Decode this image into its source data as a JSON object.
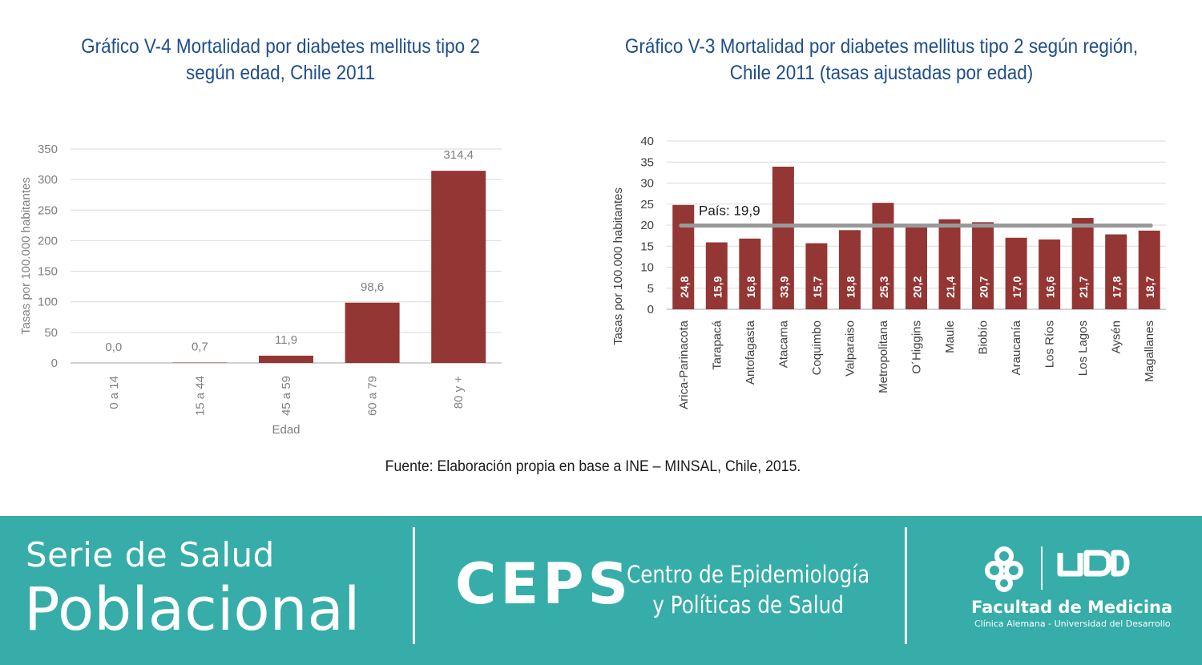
{
  "charts": {
    "left": {
      "title_line1": "Gráfico V-4 Mortalidad por diabetes mellitus tipo 2",
      "title_line2": "según edad, Chile 2011"
    },
    "right": {
      "title_line1": "Gráfico V-3 Mortalidad por diabetes mellitus tipo 2 según región,",
      "title_line2": "Chile 2011 (tasas ajustadas por edad)"
    }
  },
  "chart_data": [
    {
      "type": "bar",
      "title": "Gráfico V-4 Mortalidad por diabetes mellitus tipo 2 según edad, Chile 2011",
      "categories": [
        "0 a 14",
        "15 a 44",
        "45 a 59",
        "60 a 79",
        "80 y +"
      ],
      "values": [
        0.0,
        0.7,
        11.9,
        98.6,
        314.4
      ],
      "value_labels": [
        "0,0",
        "0,7",
        "11,9",
        "98,6",
        "314,4"
      ],
      "xlabel": "Edad",
      "ylabel": "Tasas por 100.000 habitantes",
      "ylim": [
        0,
        350
      ],
      "yticks": [
        0,
        50,
        100,
        150,
        200,
        250,
        300,
        350
      ],
      "grid": true,
      "bar_color": "#943634"
    },
    {
      "type": "bar",
      "title": "Gráfico V-3 Mortalidad por diabetes mellitus tipo 2 según región, Chile 2011 (tasas ajustadas por edad)",
      "categories": [
        "Arica-Parinacota",
        "Tarapacá",
        "Antofagasta",
        "Atacama",
        "Coquimbo",
        "Valparaiso",
        "Metropolitana",
        "O´Higgins",
        "Maule",
        "Biobío",
        "Araucanía",
        "Los Ríos",
        "Los Lagos",
        "Aysén",
        "Magallanes"
      ],
      "values": [
        24.8,
        15.9,
        16.8,
        33.9,
        15.7,
        18.8,
        25.3,
        20.2,
        21.4,
        20.7,
        17.0,
        16.6,
        21.7,
        17.8,
        18.7
      ],
      "value_labels": [
        "24,8",
        "15,9",
        "16,8",
        "33,9",
        "15,7",
        "18,8",
        "25,3",
        "20,2",
        "21,4",
        "20,7",
        "17,0",
        "16,6",
        "21,7",
        "17,8",
        "18,7"
      ],
      "xlabel": "",
      "ylabel": "Tasas por 100.000 habitantes",
      "ylim": [
        0,
        40
      ],
      "yticks": [
        0,
        5,
        10,
        15,
        20,
        25,
        30,
        35,
        40
      ],
      "grid": true,
      "bar_color": "#943634",
      "reference_line": {
        "value": 19.9,
        "label": "País: 19,9",
        "color": "#999999"
      }
    }
  ],
  "source_text": "Fuente: Elaboración propia en base a INE – MINSAL, Chile, 2015.",
  "footer": {
    "serie_line1": "Serie de Salud",
    "serie_line2": "Poblacional",
    "ceps": "CEPS",
    "ceps_line1": "Centro de Epidemiología",
    "ceps_line2": "y Políticas de Salud",
    "facultad": "Facultad de Medicina",
    "facultad_sub": "Clínica Alemana - Universidad del Desarrollo",
    "background_color": "#36ada9"
  }
}
